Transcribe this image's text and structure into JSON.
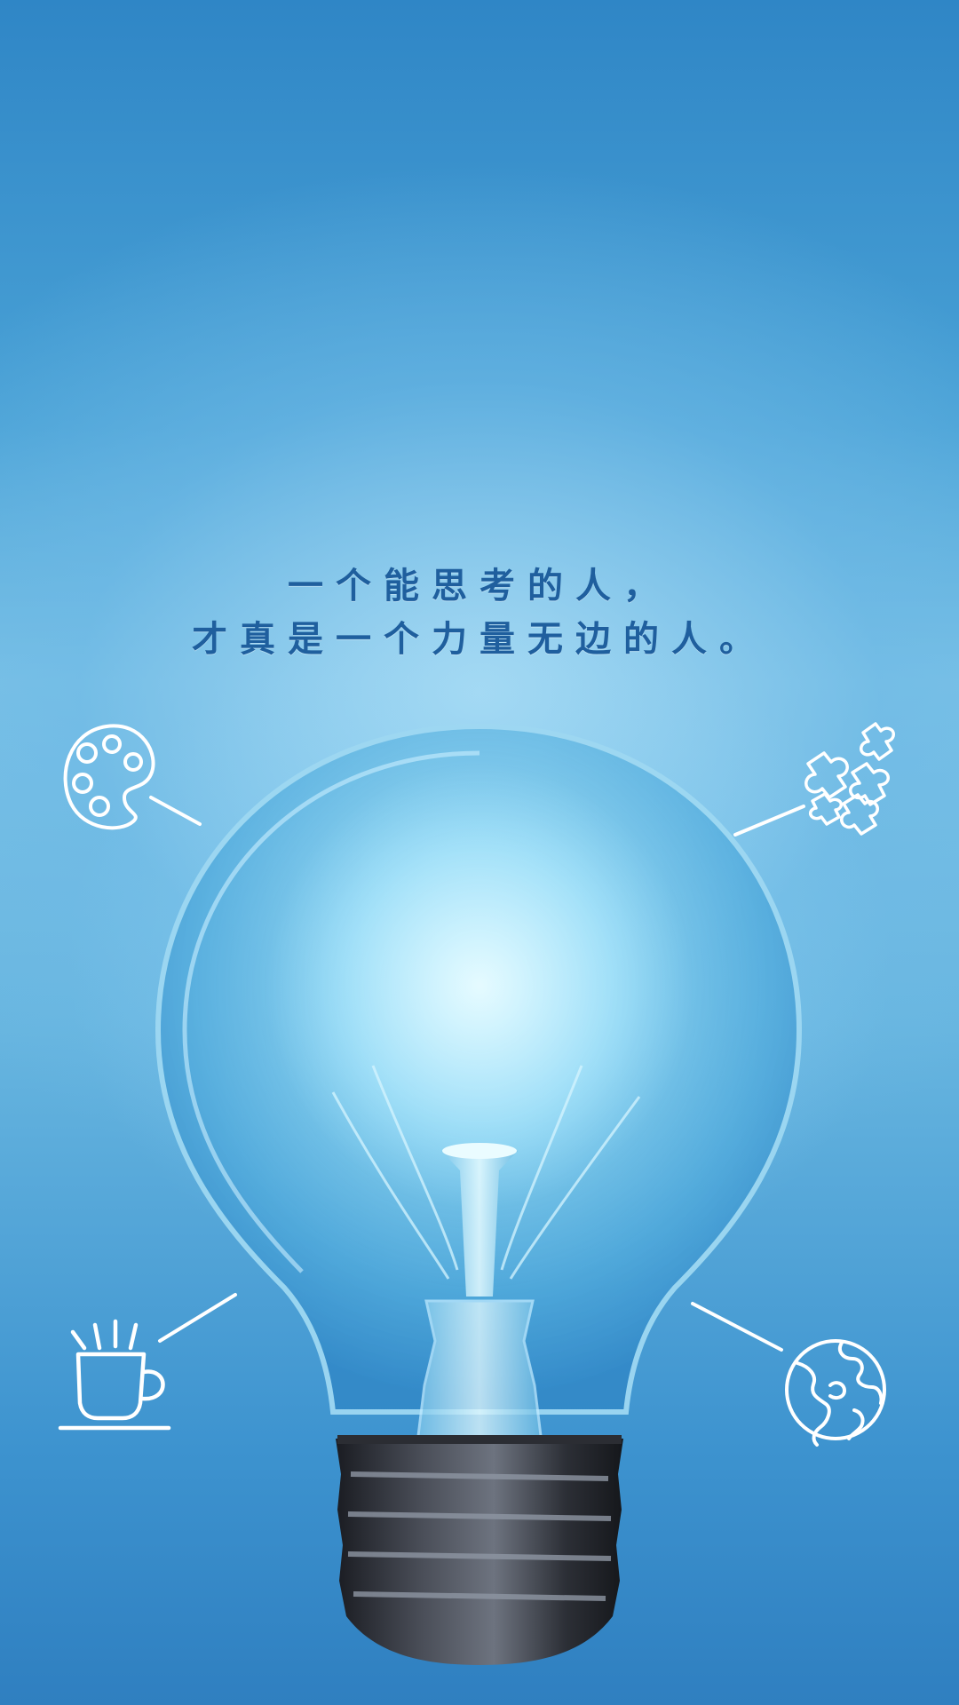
{
  "quote": {
    "line1": "一个能思考的人，",
    "line2": "才真是一个力量无边的人。"
  },
  "icons": {
    "top_left": "palette-icon",
    "top_right": "puzzle-icon",
    "bottom_left": "coffee-cup-icon",
    "bottom_right": "globe-icon",
    "center": "light-bulb-icon"
  },
  "colors": {
    "background": "#4aa2d6",
    "text": "#1f5f9e",
    "icon_stroke": "#ffffff"
  }
}
